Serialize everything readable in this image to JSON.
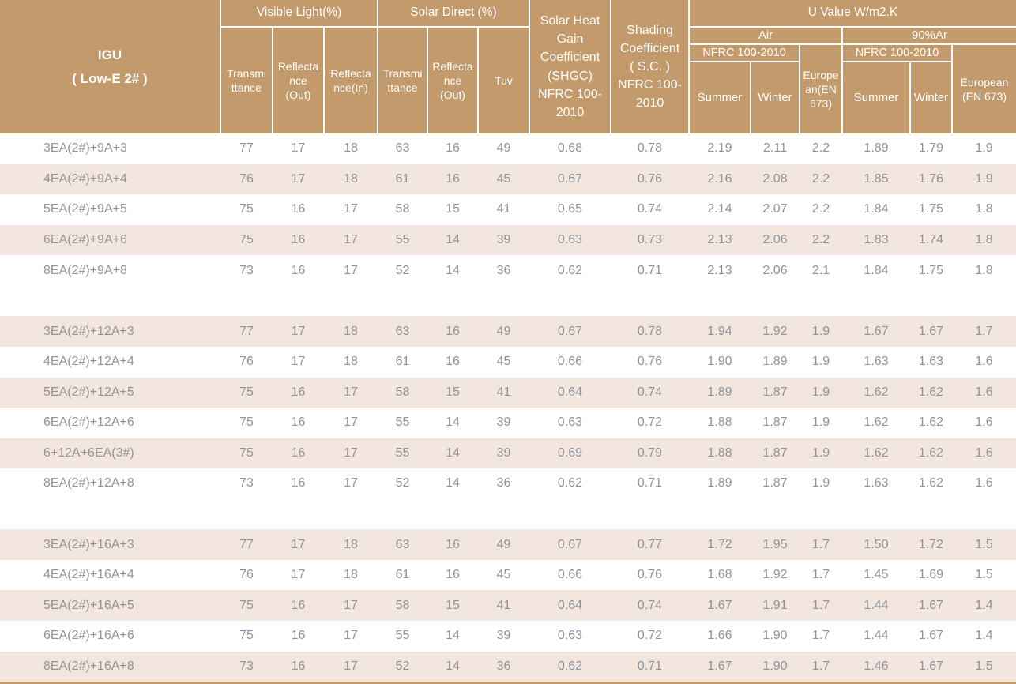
{
  "colors": {
    "header_bg": "#c29a6b",
    "stripe_bg": "#f2e6de",
    "data_text": "#8f939a",
    "header_text": "#ffffff"
  },
  "header": {
    "igu": "IGU\n( Low-E 2# )",
    "visible_light": "Visible Light(%)",
    "solar_direct": "Solar  Direct (%)",
    "vl_transmittance": "Transmi\nttance",
    "vl_reflectance_out": "Reflecta\nnce\n(Out)",
    "vl_reflectance_in": "Reflecta\nnce(In)",
    "sd_transmittance": "Transmi\nttance",
    "sd_reflectance_out": "Reflecta\nnce\n(Out)",
    "tuv": "Tuv",
    "shgc": "Solar Heat\nGain\nCoefficient\n(SHGC)\nNFRC 100-\n2010",
    "shading_coefficient": "Shading\nCoefficient\n( S.C. )\nNFRC 100-\n2010",
    "u_value": "U Value W/m2.K",
    "air": "Air",
    "argon": "90%Ar",
    "nfrc_air": "NFRC 100-2010",
    "nfrc_argon": "NFRC 100-2010",
    "summer_air": "Summer",
    "winter_air": "Winter",
    "european_air": "Europe\nan(EN\n673)",
    "summer_argon": "Summer",
    "winter_argon": "Winter",
    "european_argon": "European\n(EN 673)"
  },
  "groups": [
    {
      "rows": [
        {
          "igu": "3EA(2#)+9A+3",
          "values": [
            "77",
            "17",
            "18",
            "63",
            "16",
            "49",
            "0.68",
            "0.78",
            "2.19",
            "2.11",
            "2.2",
            "1.89",
            "1.79",
            "1.9"
          ]
        },
        {
          "igu": "4EA(2#)+9A+4",
          "values": [
            "76",
            "17",
            "18",
            "61",
            "16",
            "45",
            "0.67",
            "0.76",
            "2.16",
            "2.08",
            "2.2",
            "1.85",
            "1.76",
            "1.9"
          ]
        },
        {
          "igu": "5EA(2#)+9A+5",
          "values": [
            "75",
            "16",
            "17",
            "58",
            "15",
            "41",
            "0.65",
            "0.74",
            "2.14",
            "2.07",
            "2.2",
            "1.84",
            "1.75",
            "1.8"
          ]
        },
        {
          "igu": "6EA(2#)+9A+6",
          "values": [
            "75",
            "16",
            "17",
            "55",
            "14",
            "39",
            "0.63",
            "0.73",
            "2.13",
            "2.06",
            "2.2",
            "1.83",
            "1.74",
            "1.8"
          ]
        },
        {
          "igu": "8EA(2#)+9A+8",
          "values": [
            "73",
            "16",
            "17",
            "52",
            "14",
            "36",
            "0.62",
            "0.71",
            "2.13",
            "2.06",
            "2.1",
            "1.84",
            "1.75",
            "1.8"
          ]
        }
      ]
    },
    {
      "rows": [
        {
          "igu": "3EA(2#)+12A+3",
          "values": [
            "77",
            "17",
            "18",
            "63",
            "16",
            "49",
            "0.67",
            "0.78",
            "1.94",
            "1.92",
            "1.9",
            "1.67",
            "1.67",
            "1.7"
          ]
        },
        {
          "igu": "4EA(2#)+12A+4",
          "values": [
            "76",
            "17",
            "18",
            "61",
            "16",
            "45",
            "0.66",
            "0.76",
            "1.90",
            "1.89",
            "1.9",
            "1.63",
            "1.63",
            "1.6"
          ]
        },
        {
          "igu": "5EA(2#)+12A+5",
          "values": [
            "75",
            "16",
            "17",
            "58",
            "15",
            "41",
            "0.64",
            "0.74",
            "1.89",
            "1.87",
            "1.9",
            "1.62",
            "1.62",
            "1.6"
          ]
        },
        {
          "igu": "6EA(2#)+12A+6",
          "values": [
            "75",
            "16",
            "17",
            "55",
            "14",
            "39",
            "0.63",
            "0.72",
            "1.88",
            "1.87",
            "1.9",
            "1.62",
            "1.62",
            "1.6"
          ]
        },
        {
          "igu": "6+12A+6EA(3#)",
          "values": [
            "75",
            "16",
            "17",
            "55",
            "14",
            "39",
            "0.69",
            "0.79",
            "1.88",
            "1.87",
            "1.9",
            "1.62",
            "1.62",
            "1.6"
          ]
        },
        {
          "igu": "8EA(2#)+12A+8",
          "values": [
            "73",
            "16",
            "17",
            "52",
            "14",
            "36",
            "0.62",
            "0.71",
            "1.89",
            "1.87",
            "1.9",
            "1.63",
            "1.62",
            "1.6"
          ]
        }
      ]
    },
    {
      "rows": [
        {
          "igu": "3EA(2#)+16A+3",
          "values": [
            "77",
            "17",
            "18",
            "63",
            "16",
            "49",
            "0.67",
            "0.77",
            "1.72",
            "1.95",
            "1.7",
            "1.50",
            "1.72",
            "1.5"
          ]
        },
        {
          "igu": "4EA(2#)+16A+4",
          "values": [
            "76",
            "17",
            "18",
            "61",
            "16",
            "45",
            "0.66",
            "0.76",
            "1.68",
            "1.92",
            "1.7",
            "1.45",
            "1.69",
            "1.5"
          ]
        },
        {
          "igu": "5EA(2#)+16A+5",
          "values": [
            "75",
            "16",
            "17",
            "58",
            "15",
            "41",
            "0.64",
            "0.74",
            "1.67",
            "1.91",
            "1.7",
            "1.44",
            "1.67",
            "1.4"
          ]
        },
        {
          "igu": "6EA(2#)+16A+6",
          "values": [
            "75",
            "16",
            "17",
            "55",
            "14",
            "39",
            "0.63",
            "0.72",
            "1.66",
            "1.90",
            "1.7",
            "1.44",
            "1.67",
            "1.4"
          ]
        },
        {
          "igu": "8EA(2#)+16A+8",
          "values": [
            "73",
            "16",
            "17",
            "52",
            "14",
            "36",
            "0.62",
            "0.71",
            "1.67",
            "1.90",
            "1.7",
            "1.46",
            "1.67",
            "1.5"
          ]
        }
      ]
    }
  ]
}
